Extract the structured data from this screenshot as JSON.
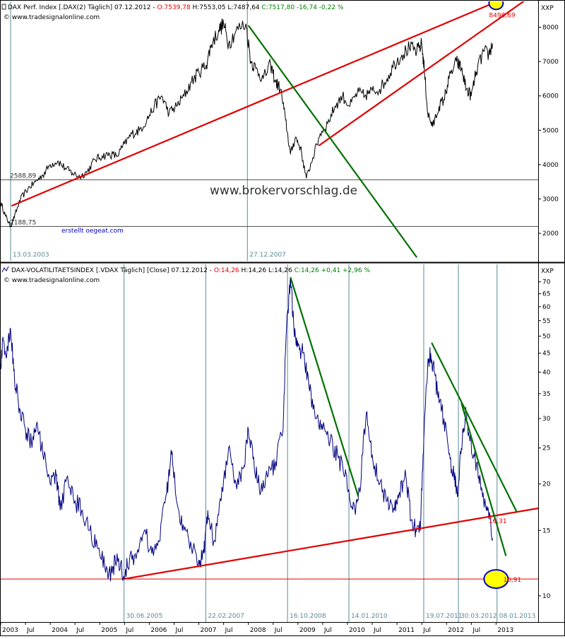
{
  "colors": {
    "background": "#ffffff",
    "frame": "#000000",
    "vertical_markers": "#5a8a94",
    "horizontal_level": "#4a4a4a",
    "price_series": "#000000",
    "volatility_series": "#000080",
    "trend_red": "#e00000",
    "trend_green": "#007000",
    "header_red": "#e00000",
    "header_green": "#008000",
    "link_blue": "#0000cc",
    "highlight_fill": "#ffff00",
    "highlight_edge": "#0000cc",
    "watermark": "#333333"
  },
  "chart_data": [
    {
      "type": "line",
      "header": {
        "prefix": "DAX Perf. Index [.DAX(2) Täglich] 07.12.2012 - ",
        "open": "O:7539,78",
        "rest_black": " H:7553,05 L:7487,64 ",
        "close_change": "C:7517,80 -16,74 -0,22 %"
      },
      "source": "© www.tradesignalonline.com",
      "watermark": "www.brokervorschlag.de",
      "credit": "erstellt oegeat.com",
      "axis_label": "XXP",
      "y_ticks": [
        2000,
        3000,
        4000,
        5000,
        6000,
        7000,
        8000
      ],
      "ylim": [
        1200,
        8750
      ],
      "xlim": [
        2003.0,
        2013.85
      ],
      "level_lines": [
        {
          "value": 3560,
          "label": "2588,89"
        },
        {
          "value": 2200,
          "label": "2188,75"
        }
      ],
      "marker_dates": [
        {
          "x": 2003.2,
          "label": "13.03.2003"
        },
        {
          "x": 2007.98,
          "label": "27.12.2007"
        }
      ],
      "annotations": [
        {
          "x": 2013.0,
          "y": 8700,
          "label": "8498,69",
          "highlight": true
        }
      ],
      "series": [
        {
          "name": "DAX",
          "color": "#000000",
          "points": [
            [
              2003.0,
              2900
            ],
            [
              2003.1,
              2500
            ],
            [
              2003.2,
              2200
            ],
            [
              2003.28,
              2500
            ],
            [
              2003.4,
              3000
            ],
            [
              2003.55,
              3300
            ],
            [
              2003.7,
              3500
            ],
            [
              2003.85,
              3700
            ],
            [
              2004.0,
              4000
            ],
            [
              2004.15,
              4100
            ],
            [
              2004.3,
              3900
            ],
            [
              2004.45,
              3750
            ],
            [
              2004.6,
              3650
            ],
            [
              2004.75,
              3800
            ],
            [
              2004.9,
              4150
            ],
            [
              2005.05,
              4250
            ],
            [
              2005.2,
              4300
            ],
            [
              2005.35,
              4250
            ],
            [
              2005.5,
              4600
            ],
            [
              2005.65,
              4900
            ],
            [
              2005.8,
              5000
            ],
            [
              2005.95,
              5300
            ],
            [
              2006.1,
              5700
            ],
            [
              2006.25,
              6000
            ],
            [
              2006.4,
              5500
            ],
            [
              2006.55,
              5700
            ],
            [
              2006.7,
              6000
            ],
            [
              2006.85,
              6400
            ],
            [
              2007.0,
              6700
            ],
            [
              2007.15,
              6900
            ],
            [
              2007.25,
              7500
            ],
            [
              2007.4,
              7900
            ],
            [
              2007.5,
              8100
            ],
            [
              2007.6,
              7500
            ],
            [
              2007.75,
              7900
            ],
            [
              2007.95,
              8100
            ],
            [
              2008.05,
              7000
            ],
            [
              2008.15,
              6800
            ],
            [
              2008.3,
              6500
            ],
            [
              2008.45,
              6900
            ],
            [
              2008.55,
              6400
            ],
            [
              2008.65,
              6200
            ],
            [
              2008.75,
              5300
            ],
            [
              2008.85,
              4300
            ],
            [
              2008.95,
              4800
            ],
            [
              2009.05,
              4500
            ],
            [
              2009.17,
              3600
            ],
            [
              2009.3,
              4200
            ],
            [
              2009.45,
              4900
            ],
            [
              2009.6,
              5200
            ],
            [
              2009.75,
              5700
            ],
            [
              2009.9,
              6000
            ],
            [
              2010.05,
              5700
            ],
            [
              2010.2,
              6100
            ],
            [
              2010.35,
              6000
            ],
            [
              2010.5,
              6150
            ],
            [
              2010.65,
              6200
            ],
            [
              2010.8,
              6500
            ],
            [
              2010.95,
              6950
            ],
            [
              2011.1,
              7200
            ],
            [
              2011.25,
              7400
            ],
            [
              2011.4,
              7300
            ],
            [
              2011.5,
              7500
            ],
            [
              2011.55,
              6800
            ],
            [
              2011.62,
              5500
            ],
            [
              2011.72,
              5100
            ],
            [
              2011.85,
              5700
            ],
            [
              2011.95,
              5900
            ],
            [
              2012.05,
              6500
            ],
            [
              2012.2,
              7000
            ],
            [
              2012.3,
              6800
            ],
            [
              2012.4,
              6200
            ],
            [
              2012.5,
              6000
            ],
            [
              2012.6,
              6700
            ],
            [
              2012.75,
              7300
            ],
            [
              2012.85,
              7200
            ],
            [
              2012.93,
              7520
            ]
          ]
        }
      ],
      "trendlines": [
        {
          "color": "#e00000",
          "from": [
            2003.22,
            2800
          ],
          "to": [
            2013.85,
            9250
          ]
        },
        {
          "color": "#e00000",
          "from": [
            2009.42,
            4550
          ],
          "to": [
            2013.85,
            9050
          ]
        },
        {
          "color": "#007000",
          "from": [
            2008.0,
            8050
          ],
          "to": [
            2011.4,
            1300
          ]
        }
      ]
    },
    {
      "type": "line",
      "header": {
        "prefix": "DAX-VOLATILITAETSINDEX [.VDAX Täglich] [Close] 07.12.2012 - ",
        "open": "O:14,26",
        "rest_black": " H:14,26 L:14,26 ",
        "close_change": "C:14,26 +0,41 +2,96 %"
      },
      "source": "© www.tradesignalonline.com",
      "axis_label": "XXP",
      "scale": "log",
      "y_ticks": [
        10,
        15,
        20,
        25,
        30,
        35,
        40,
        45,
        50,
        55,
        60,
        65,
        70
      ],
      "ylim": [
        8.5,
        78
      ],
      "xlim": [
        2003.0,
        2013.85
      ],
      "level_lines": [
        {
          "value": 11.1,
          "label": ""
        }
      ],
      "marker_dates": [
        {
          "x": 2005.49,
          "label": "30.06.2005"
        },
        {
          "x": 2007.14,
          "label": "22.02.2007"
        },
        {
          "x": 2008.79,
          "label": "16.10.2008"
        },
        {
          "x": 2010.03,
          "label": "14.01.2010"
        },
        {
          "x": 2011.54,
          "label": "19.07.2011"
        },
        {
          "x": 2012.24,
          "label": "30.03.2012"
        },
        {
          "x": 2013.02,
          "label": "08.01.2013"
        }
      ],
      "annotations": [
        {
          "x": 2012.85,
          "y": 16.4,
          "label": "16,31",
          "highlight": false
        },
        {
          "x": 2013.0,
          "y": 11.1,
          "label": "10,91",
          "highlight": true
        }
      ],
      "series": [
        {
          "name": "VDAX",
          "color": "#000080",
          "points": [
            [
              2003.0,
              42
            ],
            [
              2003.05,
              49
            ],
            [
              2003.12,
              44
            ],
            [
              2003.2,
              52
            ],
            [
              2003.28,
              38
            ],
            [
              2003.38,
              32
            ],
            [
              2003.5,
              28
            ],
            [
              2003.62,
              26
            ],
            [
              2003.72,
              29
            ],
            [
              2003.85,
              24
            ],
            [
              2004.0,
              20
            ],
            [
              2004.12,
              21
            ],
            [
              2004.2,
              17
            ],
            [
              2004.35,
              21
            ],
            [
              2004.5,
              18
            ],
            [
              2004.65,
              17
            ],
            [
              2004.8,
              15
            ],
            [
              2004.95,
              13.5
            ],
            [
              2005.1,
              12
            ],
            [
              2005.25,
              11.5
            ],
            [
              2005.35,
              13
            ],
            [
              2005.48,
              11.3
            ],
            [
              2005.6,
              12.5
            ],
            [
              2005.75,
              13
            ],
            [
              2005.9,
              15
            ],
            [
              2006.05,
              13
            ],
            [
              2006.2,
              14
            ],
            [
              2006.35,
              19
            ],
            [
              2006.45,
              24
            ],
            [
              2006.55,
              18
            ],
            [
              2006.7,
              15
            ],
            [
              2006.85,
              13.5
            ],
            [
              2007.0,
              12.5
            ],
            [
              2007.1,
              13
            ],
            [
              2007.18,
              17
            ],
            [
              2007.3,
              14
            ],
            [
              2007.45,
              18
            ],
            [
              2007.6,
              25
            ],
            [
              2007.75,
              20
            ],
            [
              2007.9,
              22
            ],
            [
              2008.0,
              28
            ],
            [
              2008.12,
              22
            ],
            [
              2008.25,
              19
            ],
            [
              2008.4,
              21
            ],
            [
              2008.55,
              23
            ],
            [
              2008.7,
              28
            ],
            [
              2008.79,
              58
            ],
            [
              2008.85,
              72
            ],
            [
              2008.92,
              52
            ],
            [
              2009.0,
              47
            ],
            [
              2009.1,
              45
            ],
            [
              2009.22,
              37
            ],
            [
              2009.35,
              30
            ],
            [
              2009.5,
              28
            ],
            [
              2009.65,
              26
            ],
            [
              2009.8,
              24
            ],
            [
              2009.95,
              21
            ],
            [
              2010.05,
              18
            ],
            [
              2010.15,
              17
            ],
            [
              2010.25,
              19
            ],
            [
              2010.38,
              31
            ],
            [
              2010.5,
              24
            ],
            [
              2010.65,
              20
            ],
            [
              2010.8,
              18
            ],
            [
              2010.95,
              17
            ],
            [
              2011.05,
              19
            ],
            [
              2011.18,
              21
            ],
            [
              2011.28,
              16
            ],
            [
              2011.38,
              15
            ],
            [
              2011.48,
              16
            ],
            [
              2011.55,
              28
            ],
            [
              2011.62,
              42
            ],
            [
              2011.68,
              45
            ],
            [
              2011.75,
              40
            ],
            [
              2011.85,
              33
            ],
            [
              2011.95,
              30
            ],
            [
              2012.05,
              24
            ],
            [
              2012.15,
              21
            ],
            [
              2012.22,
              18.5
            ],
            [
              2012.3,
              25
            ],
            [
              2012.38,
              31
            ],
            [
              2012.45,
              27
            ],
            [
              2012.55,
              24
            ],
            [
              2012.65,
              21
            ],
            [
              2012.75,
              18
            ],
            [
              2012.85,
              16.5
            ],
            [
              2012.93,
              14.26
            ]
          ]
        }
      ],
      "trendlines": [
        {
          "color": "#e00000",
          "from": [
            2005.49,
            11.1
          ],
          "to": [
            2013.85,
            17.2
          ]
        },
        {
          "color": "#007000",
          "from": [
            2008.85,
            72
          ],
          "to": [
            2010.22,
            18.5
          ]
        },
        {
          "color": "#007000",
          "from": [
            2011.7,
            48
          ],
          "to": [
            2013.42,
            16.8
          ]
        },
        {
          "color": "#007000",
          "from": [
            2012.3,
            33
          ],
          "to": [
            2013.2,
            12.8
          ]
        }
      ]
    }
  ],
  "time_axis": {
    "labels": [
      {
        "x": 2003.0,
        "text": "2003"
      },
      {
        "x": 2003.5,
        "text": "Jul"
      },
      {
        "x": 2004.0,
        "text": "2004"
      },
      {
        "x": 2004.5,
        "text": "Jul"
      },
      {
        "x": 2005.0,
        "text": "2005"
      },
      {
        "x": 2005.5,
        "text": "Jul"
      },
      {
        "x": 2006.0,
        "text": "2006"
      },
      {
        "x": 2006.5,
        "text": "Jul"
      },
      {
        "x": 2007.0,
        "text": "2007"
      },
      {
        "x": 2007.5,
        "text": "Jul"
      },
      {
        "x": 2008.0,
        "text": "2008"
      },
      {
        "x": 2008.5,
        "text": "Jul"
      },
      {
        "x": 2009.0,
        "text": "2009"
      },
      {
        "x": 2009.5,
        "text": "Jul"
      },
      {
        "x": 2010.0,
        "text": "2010"
      },
      {
        "x": 2010.5,
        "text": "Jul"
      },
      {
        "x": 2011.0,
        "text": "2011"
      },
      {
        "x": 2011.5,
        "text": "Jul"
      },
      {
        "x": 2012.0,
        "text": "2012"
      },
      {
        "x": 2012.5,
        "text": "Jul"
      },
      {
        "x": 2013.0,
        "text": "2013"
      }
    ]
  }
}
